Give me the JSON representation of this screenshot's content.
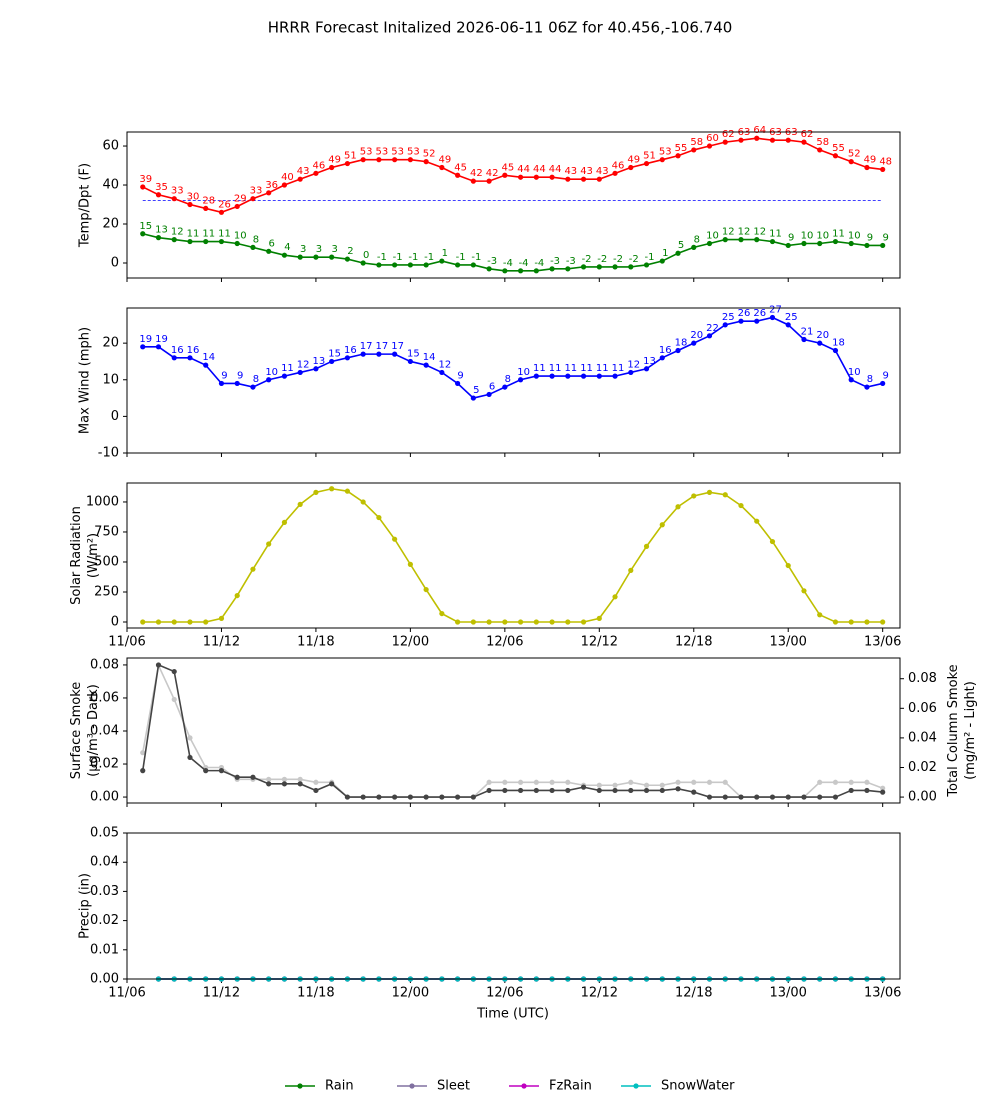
{
  "title": "HRRR Forecast Initalized 2026-06-11 06Z for 40.456,-106.740",
  "xlabel": "Time (UTC)",
  "chart_data": [
    {
      "type": "line",
      "ylabel": [
        "Temp/Dpt (F)"
      ],
      "xlim": [
        0,
        49.1
      ],
      "xticks": [
        0,
        6,
        12,
        18,
        24,
        30,
        36,
        42,
        48
      ],
      "ylim": [
        -7.7,
        67.2
      ],
      "yticks": [
        0,
        20,
        40,
        60
      ],
      "reference_line": {
        "value": 32,
        "color": "#0000ff"
      },
      "x": [
        1,
        2,
        3,
        4,
        5,
        6,
        7,
        8,
        9,
        10,
        11,
        12,
        13,
        14,
        15,
        16,
        17,
        18,
        19,
        20,
        21,
        22,
        23,
        24,
        25,
        26,
        27,
        28,
        29,
        30,
        31,
        32,
        33,
        34,
        35,
        36,
        37,
        38,
        39,
        40,
        41,
        42,
        43,
        44,
        45,
        46,
        47,
        48
      ],
      "series": [
        {
          "name": "Temp",
          "color": "#ff0000",
          "data_labels": true,
          "values": [
            39,
            35,
            33,
            30,
            28,
            26,
            29,
            33,
            36,
            40,
            43,
            46,
            49,
            51,
            53,
            53,
            53,
            53,
            52,
            49,
            45,
            42,
            42,
            45,
            44,
            44,
            44,
            43,
            43,
            43,
            46,
            49,
            51,
            53,
            55,
            58,
            60,
            62,
            63,
            64,
            63,
            63,
            62,
            58,
            55,
            52,
            49,
            48
          ]
        },
        {
          "name": "Dewpoint",
          "color": "#008000",
          "data_labels": true,
          "values": [
            15,
            13,
            12,
            11,
            11,
            11,
            10,
            8,
            6,
            4,
            3,
            3,
            3,
            2,
            0,
            -1,
            -1,
            -1,
            -1,
            1,
            -1,
            -1,
            -3,
            -4,
            -4,
            -4,
            -3,
            -3,
            -2,
            -2,
            -2,
            -2,
            -1,
            1,
            5,
            8,
            10,
            12,
            12,
            12,
            11,
            9,
            10,
            10,
            11,
            10,
            9,
            9
          ]
        }
      ]
    },
    {
      "type": "line",
      "ylabel": [
        "Max Wind (mph)"
      ],
      "xlim": [
        0,
        49.1
      ],
      "xticks": [
        0,
        6,
        12,
        18,
        24,
        30,
        36,
        42,
        48
      ],
      "ylim": [
        -10,
        29.6
      ],
      "yticks": [
        -10,
        0,
        10,
        20
      ],
      "x": [
        1,
        2,
        3,
        4,
        5,
        6,
        7,
        8,
        9,
        10,
        11,
        12,
        13,
        14,
        15,
        16,
        17,
        18,
        19,
        20,
        21,
        22,
        23,
        24,
        25,
        26,
        27,
        28,
        29,
        30,
        31,
        32,
        33,
        34,
        35,
        36,
        37,
        38,
        39,
        40,
        41,
        42,
        43,
        44,
        45,
        46,
        47,
        48
      ],
      "series": [
        {
          "name": "Max Wind",
          "color": "#0000ff",
          "data_labels": true,
          "values": [
            19,
            19,
            16,
            16,
            14,
            9,
            9,
            8,
            10,
            11,
            12,
            13,
            15,
            16,
            17,
            17,
            17,
            15,
            14,
            12,
            9,
            5,
            6,
            8,
            10,
            11,
            11,
            11,
            11,
            11,
            11,
            12,
            13,
            16,
            18,
            20,
            22,
            25,
            26,
            26,
            27,
            25,
            21,
            20,
            18,
            10,
            8,
            9
          ]
        }
      ]
    },
    {
      "type": "line",
      "ylabel": [
        "Solar Radiation",
        "(W/m²)"
      ],
      "xlim": [
        0,
        49.1
      ],
      "xticks": [
        {
          "value": 0,
          "label": "11/06"
        },
        {
          "value": 6,
          "label": "11/12"
        },
        {
          "value": 12,
          "label": "11/18"
        },
        {
          "value": 18,
          "label": "12/00"
        },
        {
          "value": 24,
          "label": "12/06"
        },
        {
          "value": 30,
          "label": "12/12"
        },
        {
          "value": 36,
          "label": "12/18"
        },
        {
          "value": 42,
          "label": "13/00"
        },
        {
          "value": 48,
          "label": "13/06"
        }
      ],
      "ylim": [
        -50,
        1158
      ],
      "yticks": [
        0,
        250,
        500,
        750,
        1000
      ],
      "x": [
        1,
        2,
        3,
        4,
        5,
        6,
        7,
        8,
        9,
        10,
        11,
        12,
        13,
        14,
        15,
        16,
        17,
        18,
        19,
        20,
        21,
        22,
        23,
        24,
        25,
        26,
        27,
        28,
        29,
        30,
        31,
        32,
        33,
        34,
        35,
        36,
        37,
        38,
        39,
        40,
        41,
        42,
        43,
        44,
        45,
        46,
        47,
        48
      ],
      "series": [
        {
          "name": "Solar Radiation",
          "color": "#bfbf00",
          "values": [
            0,
            0,
            0,
            0,
            0,
            30,
            220,
            440,
            650,
            830,
            980,
            1080,
            1110,
            1090,
            1000,
            870,
            690,
            480,
            270,
            70,
            0,
            0,
            0,
            0,
            0,
            0,
            0,
            0,
            0,
            30,
            210,
            430,
            630,
            810,
            960,
            1050,
            1080,
            1060,
            970,
            840,
            670,
            470,
            260,
            60,
            0,
            0,
            0,
            0
          ]
        }
      ]
    },
    {
      "type": "line",
      "ylabel": [
        "Surface Smoke",
        "(μg/m³ - Dark)"
      ],
      "y2label": [
        "Total Column Smoke",
        "(mg/m² - Light)"
      ],
      "xlim": [
        0,
        49.1
      ],
      "xticks": [
        0,
        6,
        12,
        18,
        24,
        30,
        36,
        42,
        48
      ],
      "ylim": [
        -0.0036,
        0.0842
      ],
      "yticks": [
        {
          "value": 0,
          "label": "0.00"
        },
        {
          "value": 0.02,
          "label": "0.02"
        },
        {
          "value": 0.04,
          "label": "0.04"
        },
        {
          "value": 0.06,
          "label": "0.06"
        },
        {
          "value": 0.08,
          "label": "0.08"
        }
      ],
      "y2lim": [
        -0.004,
        0.094
      ],
      "y2ticks": [
        {
          "value": 0,
          "label": "0.00"
        },
        {
          "value": 0.02,
          "label": "0.02"
        },
        {
          "value": 0.04,
          "label": "0.04"
        },
        {
          "value": 0.06,
          "label": "0.06"
        },
        {
          "value": 0.08,
          "label": "0.08"
        }
      ],
      "x": [
        1,
        2,
        3,
        4,
        5,
        6,
        7,
        8,
        9,
        10,
        11,
        12,
        13,
        14,
        15,
        16,
        17,
        18,
        19,
        20,
        21,
        22,
        23,
        24,
        25,
        26,
        27,
        28,
        29,
        30,
        31,
        32,
        33,
        34,
        35,
        36,
        37,
        38,
        39,
        40,
        41,
        42,
        43,
        44,
        45,
        46,
        47,
        48
      ],
      "series": [
        {
          "name": "Total Column Smoke",
          "color": "#c8c8c8",
          "axis": "y2",
          "values": [
            0.03,
            0.089,
            0.066,
            0.04,
            0.02,
            0.02,
            0.012,
            0.012,
            0.012,
            0.012,
            0.012,
            0.01,
            0.01,
            0,
            0,
            0,
            0,
            0,
            0,
            0,
            0,
            0,
            0.01,
            0.01,
            0.01,
            0.01,
            0.01,
            0.01,
            0.008,
            0.008,
            0.008,
            0.01,
            0.008,
            0.008,
            0.01,
            0.01,
            0.01,
            0.01,
            0,
            0,
            0,
            0,
            0,
            0.01,
            0.01,
            0.01,
            0.01,
            0.006
          ]
        },
        {
          "name": "Surface Smoke",
          "color": "#444444",
          "values": [
            0.016,
            0.08,
            0.076,
            0.024,
            0.016,
            0.016,
            0.012,
            0.012,
            0.008,
            0.008,
            0.008,
            0.004,
            0.008,
            0,
            0,
            0,
            0,
            0,
            0,
            0,
            0,
            0,
            0.004,
            0.004,
            0.004,
            0.004,
            0.004,
            0.004,
            0.006,
            0.004,
            0.004,
            0.004,
            0.004,
            0.004,
            0.005,
            0.003,
            0,
            0,
            0,
            0,
            0,
            0,
            0,
            0,
            0,
            0.004,
            0.004,
            0.003
          ]
        }
      ]
    },
    {
      "type": "line",
      "ylabel": [
        "Precip (in)"
      ],
      "xlim": [
        0,
        49.1
      ],
      "legend": "bottom",
      "xticks": [
        {
          "value": 0,
          "label": "11/06"
        },
        {
          "value": 6,
          "label": "11/12"
        },
        {
          "value": 12,
          "label": "11/18"
        },
        {
          "value": 18,
          "label": "12/00"
        },
        {
          "value": 24,
          "label": "12/06"
        },
        {
          "value": 30,
          "label": "12/12"
        },
        {
          "value": 36,
          "label": "12/18"
        },
        {
          "value": 42,
          "label": "13/00"
        },
        {
          "value": 48,
          "label": "13/06"
        }
      ],
      "ylim": [
        0,
        0.05
      ],
      "yticks": [
        {
          "value": 0,
          "label": "0.00"
        },
        {
          "value": 0.01,
          "label": "0.01"
        },
        {
          "value": 0.02,
          "label": "0.02"
        },
        {
          "value": 0.03,
          "label": "0.03"
        },
        {
          "value": 0.04,
          "label": "0.04"
        },
        {
          "value": 0.05,
          "label": "0.05"
        }
      ],
      "x": [
        2,
        3,
        4,
        5,
        6,
        7,
        8,
        9,
        10,
        11,
        12,
        13,
        14,
        15,
        16,
        17,
        18,
        19,
        20,
        21,
        22,
        23,
        24,
        25,
        26,
        27,
        28,
        29,
        30,
        31,
        32,
        33,
        34,
        35,
        36,
        37,
        38,
        39,
        40,
        41,
        42,
        43,
        44,
        45,
        46,
        47,
        48
      ],
      "series": [
        {
          "name": "Rain",
          "color": "#008000",
          "values": [
            0,
            0,
            0,
            0,
            0,
            0,
            0,
            0,
            0,
            0,
            0,
            0,
            0,
            0,
            0,
            0,
            0,
            0,
            0,
            0,
            0,
            0,
            0,
            0,
            0,
            0,
            0,
            0,
            0,
            0,
            0,
            0,
            0,
            0,
            0,
            0,
            0,
            0,
            0,
            0,
            0,
            0,
            0,
            0,
            0,
            0,
            0
          ]
        },
        {
          "name": "Sleet",
          "color": "#8070a0",
          "values": [
            0,
            0,
            0,
            0,
            0,
            0,
            0,
            0,
            0,
            0,
            0,
            0,
            0,
            0,
            0,
            0,
            0,
            0,
            0,
            0,
            0,
            0,
            0,
            0,
            0,
            0,
            0,
            0,
            0,
            0,
            0,
            0,
            0,
            0,
            0,
            0,
            0,
            0,
            0,
            0,
            0,
            0,
            0,
            0,
            0,
            0,
            0
          ]
        },
        {
          "name": "FzRain",
          "color": "#c000c0",
          "values": [
            0,
            0,
            0,
            0,
            0,
            0,
            0,
            0,
            0,
            0,
            0,
            0,
            0,
            0,
            0,
            0,
            0,
            0,
            0,
            0,
            0,
            0,
            0,
            0,
            0,
            0,
            0,
            0,
            0,
            0,
            0,
            0,
            0,
            0,
            0,
            0,
            0,
            0,
            0,
            0,
            0,
            0,
            0,
            0,
            0,
            0,
            0
          ]
        },
        {
          "name": "SnowWater",
          "color": "#00bfbf",
          "values": [
            0,
            0,
            0,
            0,
            0,
            0,
            0,
            0,
            0,
            0,
            0,
            0,
            0,
            0,
            0,
            0,
            0,
            0,
            0,
            0,
            0,
            0,
            0,
            0,
            0,
            0,
            0,
            0,
            0,
            0,
            0,
            0,
            0,
            0,
            0,
            0,
            0,
            0,
            0,
            0,
            0,
            0,
            0,
            0,
            0,
            0,
            0
          ]
        }
      ]
    }
  ]
}
